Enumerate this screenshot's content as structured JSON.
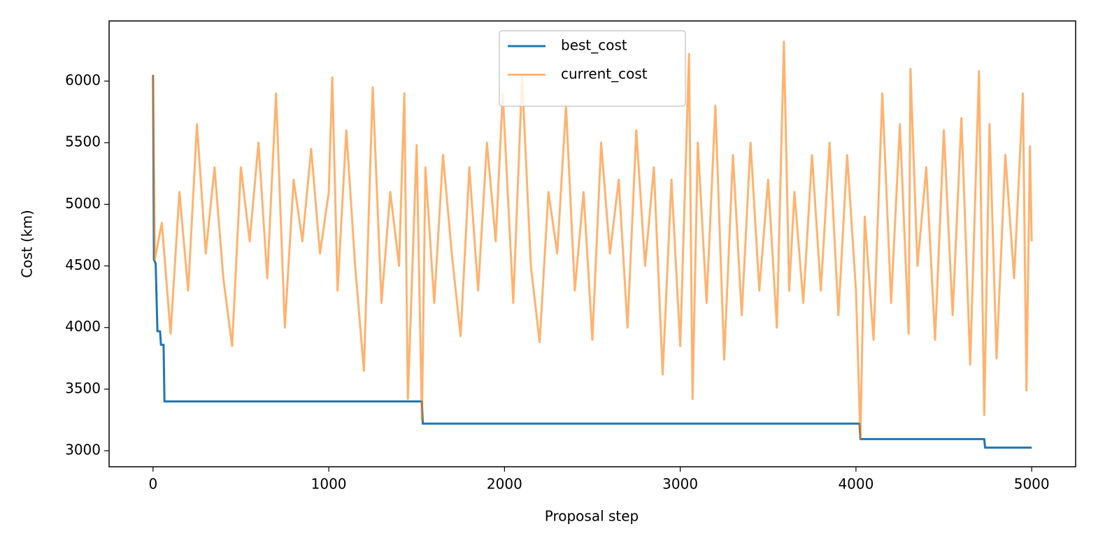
{
  "chart_data": {
    "type": "line",
    "xlabel": "Proposal step",
    "ylabel": "Cost (km)",
    "xlim": [
      -250,
      5250
    ],
    "ylim": [
      2870,
      6488
    ],
    "xticks": [
      0,
      1000,
      2000,
      3000,
      4000,
      5000
    ],
    "yticks": [
      3000,
      3500,
      4000,
      4500,
      5000,
      5500,
      6000
    ],
    "legend": "upper center",
    "series": [
      {
        "name": "best_cost",
        "color": "#1f77b4",
        "alpha": 1,
        "x": [
          0,
          5,
          15,
          25,
          40,
          45,
          60,
          65,
          1530,
          1535,
          4020,
          4025,
          4730,
          4735,
          5000
        ],
        "values": [
          6050,
          4550,
          4520,
          3970,
          3970,
          3860,
          3860,
          3400,
          3400,
          3220,
          3220,
          3095,
          3095,
          3025,
          3025
        ]
      },
      {
        "name": "current_cost",
        "color": "#ff7f0e",
        "alpha": 0.6,
        "x": [
          0,
          10,
          50,
          100,
          150,
          200,
          250,
          300,
          350,
          400,
          450,
          500,
          550,
          600,
          650,
          700,
          750,
          800,
          850,
          900,
          950,
          1000,
          1020,
          1050,
          1100,
          1150,
          1200,
          1250,
          1300,
          1350,
          1400,
          1430,
          1450,
          1500,
          1530,
          1550,
          1600,
          1650,
          1700,
          1750,
          1800,
          1850,
          1900,
          1950,
          1990,
          2050,
          2100,
          2150,
          2200,
          2250,
          2300,
          2350,
          2400,
          2450,
          2500,
          2550,
          2600,
          2650,
          2700,
          2750,
          2800,
          2850,
          2900,
          2950,
          3000,
          3050,
          3070,
          3100,
          3150,
          3200,
          3250,
          3300,
          3350,
          3400,
          3450,
          3500,
          3550,
          3590,
          3620,
          3650,
          3700,
          3750,
          3800,
          3850,
          3900,
          3950,
          4000,
          4025,
          4050,
          4100,
          4150,
          4200,
          4250,
          4300,
          4310,
          4350,
          4400,
          4450,
          4500,
          4550,
          4600,
          4650,
          4700,
          4730,
          4760,
          4800,
          4850,
          4900,
          4950,
          4970,
          4990,
          5000
        ],
        "values": [
          6050,
          4550,
          4850,
          3950,
          5100,
          4300,
          5650,
          4600,
          5300,
          4400,
          3850,
          5300,
          4700,
          5500,
          4400,
          5900,
          4000,
          5200,
          4700,
          5450,
          4600,
          5100,
          6030,
          4300,
          5600,
          4500,
          3650,
          5950,
          4200,
          5100,
          4500,
          5900,
          3420,
          5480,
          3250,
          5300,
          4200,
          5400,
          4600,
          3930,
          5300,
          4300,
          5500,
          4700,
          5900,
          4200,
          6040,
          4500,
          3880,
          5100,
          4600,
          5800,
          4300,
          5100,
          3900,
          5500,
          4600,
          5200,
          4000,
          5600,
          4500,
          5300,
          3620,
          5200,
          3850,
          6220,
          3420,
          5500,
          4200,
          5800,
          3740,
          5400,
          4100,
          5500,
          4300,
          5200,
          4000,
          6320,
          4300,
          5100,
          4200,
          5400,
          4300,
          5500,
          4100,
          5400,
          4300,
          3100,
          4900,
          3900,
          5900,
          4200,
          5650,
          3950,
          6100,
          4500,
          5300,
          3900,
          5600,
          4100,
          5700,
          3700,
          6080,
          3290,
          5650,
          3750,
          5400,
          4400,
          5900,
          3490,
          5470,
          4700
        ]
      }
    ]
  }
}
